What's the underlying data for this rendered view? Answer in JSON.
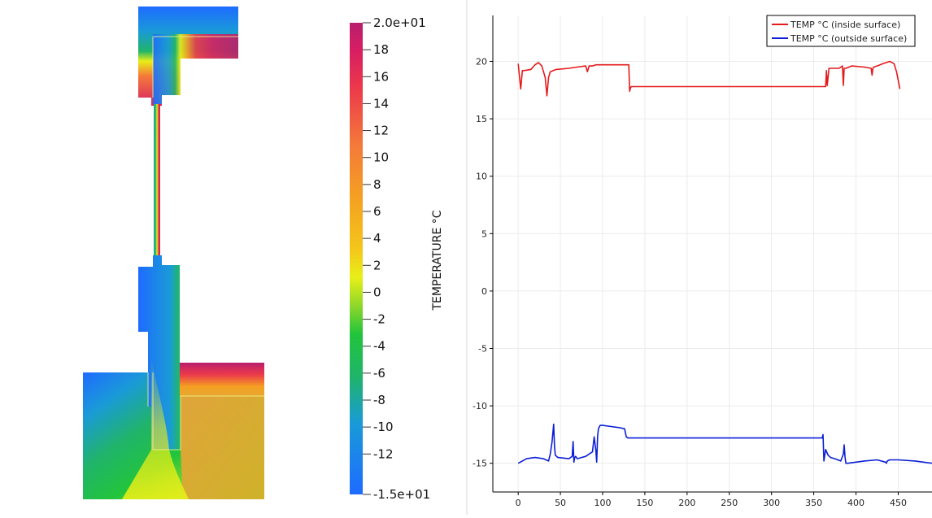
{
  "left_panel": {
    "colorbar": {
      "title": "TEMPERATURE °C",
      "tick_labels": [
        "2.0e+01",
        "18",
        "16",
        "14",
        "12",
        "10",
        "8",
        "6",
        "4",
        "2",
        "0",
        "-2",
        "-4",
        "-6",
        "-8",
        "-10",
        "-12",
        "-1.5e+01"
      ],
      "tick_values": [
        20,
        18,
        16,
        14,
        12,
        10,
        8,
        6,
        4,
        2,
        0,
        -2,
        -4,
        -6,
        -8,
        -10,
        -12,
        -15
      ],
      "range": [
        -15,
        20
      ],
      "colors": [
        "#1e6bff",
        "#1a9ad8",
        "#20b46a",
        "#22c43c",
        "#8ed72a",
        "#e8ef18",
        "#f4c61a",
        "#f4a022",
        "#f47a3a",
        "#ec3a4a",
        "#d81e63",
        "#b81e6d"
      ]
    }
  },
  "chart_data": {
    "type": "line",
    "title": "",
    "xlabel": "",
    "ylabel": "",
    "xlim": [
      -30,
      490
    ],
    "ylim": [
      -17.5,
      24
    ],
    "x_ticks": [
      0,
      50,
      100,
      150,
      200,
      250,
      300,
      350,
      400,
      450
    ],
    "y_ticks": [
      -15,
      -10,
      -5,
      0,
      5,
      10,
      15,
      20
    ],
    "x_tick_labels": [
      "0",
      "50",
      "100",
      "150",
      "200",
      "250",
      "300",
      "350",
      "400",
      "450"
    ],
    "y_tick_labels": [
      "-15",
      "-10",
      "-5",
      "0",
      "5",
      "10",
      "15",
      "20"
    ],
    "grid": true,
    "legend_position": "top-right",
    "series": [
      {
        "name": "TEMP °C (inside surface)",
        "color": "#e41a1c",
        "x": [
          0,
          3,
          5,
          7,
          15,
          20,
          24,
          28,
          32,
          34,
          36,
          38,
          45,
          60,
          70,
          80,
          82,
          84,
          88,
          92,
          97,
          100,
          115,
          131,
          132,
          133,
          134,
          150,
          200,
          250,
          300,
          350,
          364,
          365,
          366,
          368,
          370,
          380,
          384,
          385,
          386,
          388,
          395,
          410,
          418,
          419,
          420,
          421,
          425,
          432,
          440,
          445,
          448,
          452
        ],
        "y": [
          19.8,
          17.6,
          19.2,
          19.2,
          19.3,
          19.7,
          19.9,
          19.6,
          18.6,
          17.0,
          18.6,
          19.1,
          19.3,
          19.4,
          19.5,
          19.6,
          19.1,
          19.6,
          19.6,
          19.7,
          19.7,
          19.7,
          19.7,
          19.7,
          17.4,
          17.7,
          17.8,
          17.8,
          17.8,
          17.8,
          17.8,
          17.8,
          17.8,
          19.2,
          17.9,
          19.4,
          19.4,
          19.4,
          19.6,
          17.9,
          19.4,
          19.4,
          19.6,
          19.5,
          19.4,
          18.8,
          19.4,
          19.5,
          19.6,
          19.8,
          20.0,
          19.8,
          19.1,
          17.6
        ]
      },
      {
        "name": "TEMP °C (outside surface)",
        "color": "#0c1fd6",
        "x": [
          0,
          5,
          10,
          20,
          30,
          36,
          38,
          40,
          42,
          43,
          44,
          47,
          60,
          64,
          65,
          66,
          67,
          68,
          70,
          75,
          80,
          88,
          90,
          92,
          93,
          94,
          95,
          97,
          100,
          110,
          120,
          126,
          128,
          130,
          200,
          250,
          300,
          360,
          361,
          362,
          364,
          367,
          370,
          375,
          382,
          385,
          386,
          387,
          388,
          390,
          400,
          410,
          425,
          435,
          436,
          437,
          440,
          450,
          470,
          490
        ],
        "y": [
          -15.0,
          -14.8,
          -14.6,
          -14.5,
          -14.6,
          -14.8,
          -14.2,
          -13.2,
          -11.6,
          -13.5,
          -14.3,
          -14.5,
          -14.6,
          -14.4,
          -13.1,
          -14.9,
          -14.5,
          -14.4,
          -14.6,
          -14.5,
          -14.4,
          -14.0,
          -12.7,
          -13.9,
          -14.9,
          -12.7,
          -12.0,
          -11.7,
          -11.7,
          -11.8,
          -11.9,
          -12.0,
          -12.7,
          -12.8,
          -12.8,
          -12.8,
          -12.8,
          -12.8,
          -12.5,
          -14.8,
          -13.8,
          -14.3,
          -14.5,
          -14.6,
          -14.8,
          -14.2,
          -13.4,
          -14.4,
          -15.0,
          -15.0,
          -14.9,
          -14.8,
          -14.7,
          -14.9,
          -15.0,
          -14.8,
          -14.7,
          -14.7,
          -14.8,
          -15.0
        ]
      }
    ]
  }
}
